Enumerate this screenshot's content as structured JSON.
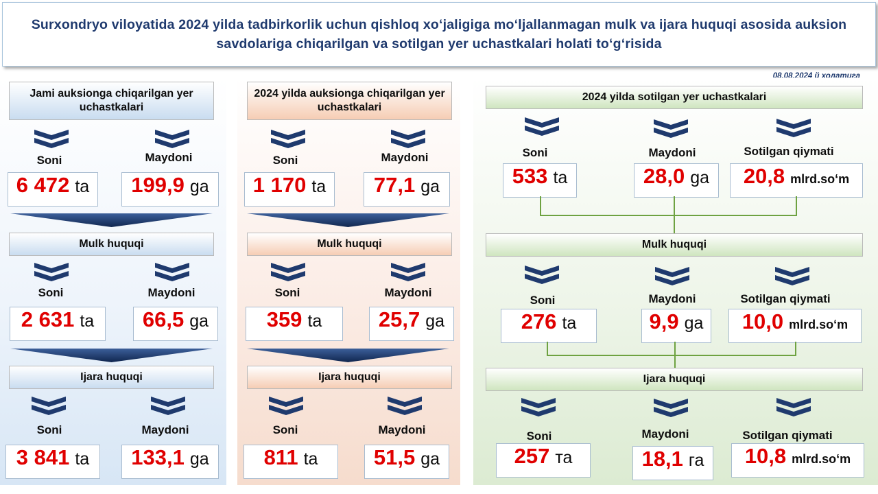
{
  "title": "Surxondryo viloyatida 2024 yilda tadbirkorlik uchun qishloq xo‘jaligiga mo‘ljallanmagan mulk va ijara huquqi asosida auksion savdolariga chiqarilgan va sotilgan yer uchastkalari holati to‘g‘risida",
  "date": "08.08.2024 й холатига",
  "labels": {
    "soni": "Soni",
    "maydoni": "Maydoni",
    "sotilgan_qiymati": "Sotilgan qiymati",
    "mulk": "Mulk huquqi",
    "ijara": "Ijara huquqi"
  },
  "units": {
    "ta": "ta",
    "ga": "ga",
    "ta_cyr": "та",
    "ga_cyr": "га",
    "mlrd": "mlrd.so‘m"
  },
  "colors": {
    "blue": "#c9dcf0",
    "orange": "#f6cdb4",
    "green": "#cfe5bf",
    "value_red": "#e00000",
    "chevron": "#1f3a6e"
  },
  "panel1": {
    "header": "Jami auksionga chiqarilgan yer uchastkalari",
    "total": {
      "soni": "6 472",
      "maydoni": "199,9"
    },
    "mulk": {
      "soni": "2 631",
      "maydoni": "66,5"
    },
    "ijara": {
      "soni": "3 841",
      "maydoni": "133,1"
    }
  },
  "panel2": {
    "header": "2024 yilda auksionga chiqarilgan yer uchastkalari",
    "total": {
      "soni": "1 170",
      "maydoni": "77,1"
    },
    "mulk": {
      "soni": "359",
      "maydoni": "25,7"
    },
    "ijara": {
      "soni": "811",
      "maydoni": "51,5"
    }
  },
  "panel3": {
    "header": "2024 yilda sotilgan yer uchastkalari",
    "total": {
      "soni": "533",
      "maydoni": "28,0",
      "qiymati": "20,8"
    },
    "mulk": {
      "soni": "276",
      "maydoni": "9,9",
      "qiymati": "10,0"
    },
    "ijara": {
      "soni": "257",
      "maydoni": "18,1",
      "qiymati": "10,8"
    }
  },
  "icons": {
    "chevron": "double-chevron-down-icon",
    "arrow": "down-arrow-banner-icon"
  }
}
